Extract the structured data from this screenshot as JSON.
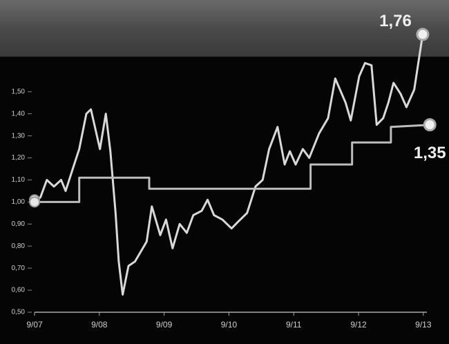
{
  "chart_data": {
    "type": "line",
    "xlim": [
      0,
      6.2
    ],
    "xticks": [
      {
        "value": 0,
        "label": "9/07"
      },
      {
        "value": 1,
        "label": "9/08"
      },
      {
        "value": 2,
        "label": "9/09"
      },
      {
        "value": 3,
        "label": "9/10"
      },
      {
        "value": 4,
        "label": "9/11"
      },
      {
        "value": 5,
        "label": "9/12"
      },
      {
        "value": 6,
        "label": "9/13"
      }
    ],
    "ylim": [
      0.5,
      1.8
    ],
    "yticks": [
      {
        "value": 0.5,
        "label": "0,50"
      },
      {
        "value": 0.6,
        "label": "0,60"
      },
      {
        "value": 0.7,
        "label": "0,70"
      },
      {
        "value": 0.8,
        "label": "0,80"
      },
      {
        "value": 0.9,
        "label": "0,90"
      },
      {
        "value": 1.0,
        "label": "1,00"
      },
      {
        "value": 1.1,
        "label": "1,10"
      },
      {
        "value": 1.2,
        "label": "1,20"
      },
      {
        "value": 1.3,
        "label": "1,30"
      },
      {
        "value": 1.4,
        "label": "1,40"
      },
      {
        "value": 1.5,
        "label": "1,50"
      }
    ],
    "grid": false,
    "series": [
      {
        "color": "#d9d9d9",
        "x": [
          0,
          0.09,
          0.19,
          0.3,
          0.41,
          0.48,
          0.59,
          0.69,
          0.8,
          0.87,
          1.01,
          1.1,
          1.17,
          1.25,
          1.3,
          1.36,
          1.45,
          1.55,
          1.65,
          1.73,
          1.81,
          1.94,
          2.03,
          2.13,
          2.24,
          2.35,
          2.45,
          2.58,
          2.67,
          2.77,
          2.9,
          3.04,
          3.14,
          3.28,
          3.41,
          3.52,
          3.62,
          3.75,
          3.86,
          3.94,
          4.03,
          4.14,
          4.24,
          4.39,
          4.53,
          4.64,
          4.8,
          4.88,
          5.01,
          5.1,
          5.2,
          5.28,
          5.38,
          5.46,
          5.54,
          5.65,
          5.74,
          5.86,
          5.99
        ],
        "values": [
          1.01,
          1.02,
          1.1,
          1.07,
          1.1,
          1.05,
          1.15,
          1.24,
          1.4,
          1.42,
          1.24,
          1.4,
          1.23,
          0.95,
          0.73,
          0.58,
          0.71,
          0.73,
          0.78,
          0.82,
          0.98,
          0.85,
          0.92,
          0.79,
          0.9,
          0.86,
          0.94,
          0.96,
          1.01,
          0.94,
          0.92,
          0.88,
          0.91,
          0.95,
          1.07,
          1.1,
          1.24,
          1.34,
          1.17,
          1.23,
          1.17,
          1.24,
          1.2,
          1.31,
          1.38,
          1.56,
          1.45,
          1.37,
          1.57,
          1.63,
          1.62,
          1.35,
          1.38,
          1.45,
          1.54,
          1.49,
          1.43,
          1.51,
          1.76
        ],
        "value_labels": [
          null,
          null,
          null,
          null,
          null,
          null,
          null,
          null,
          null,
          null,
          null,
          null,
          null,
          null,
          null,
          null,
          null,
          null,
          null,
          null,
          null,
          null,
          null,
          null,
          null,
          null,
          null,
          null,
          null,
          null,
          null,
          null,
          null,
          null,
          null,
          null,
          null,
          null,
          null,
          null,
          null,
          null,
          null,
          null,
          null,
          null,
          null,
          null,
          null,
          null,
          null,
          null,
          null,
          null,
          null,
          null,
          null,
          null,
          "1,76"
        ]
      },
      {
        "color": "#bdbdbd",
        "x": [
          0,
          0.69,
          0.69,
          1.77,
          1.77,
          4.26,
          4.26,
          4.9,
          4.9,
          5.5,
          5.5,
          6.1
        ],
        "values": [
          1.0,
          1.0,
          1.11,
          1.11,
          1.06,
          1.06,
          1.17,
          1.17,
          1.27,
          1.27,
          1.34,
          1.35
        ],
        "value_labels": [
          null,
          null,
          null,
          null,
          null,
          null,
          null,
          null,
          null,
          null,
          null,
          "1,35"
        ]
      }
    ]
  }
}
